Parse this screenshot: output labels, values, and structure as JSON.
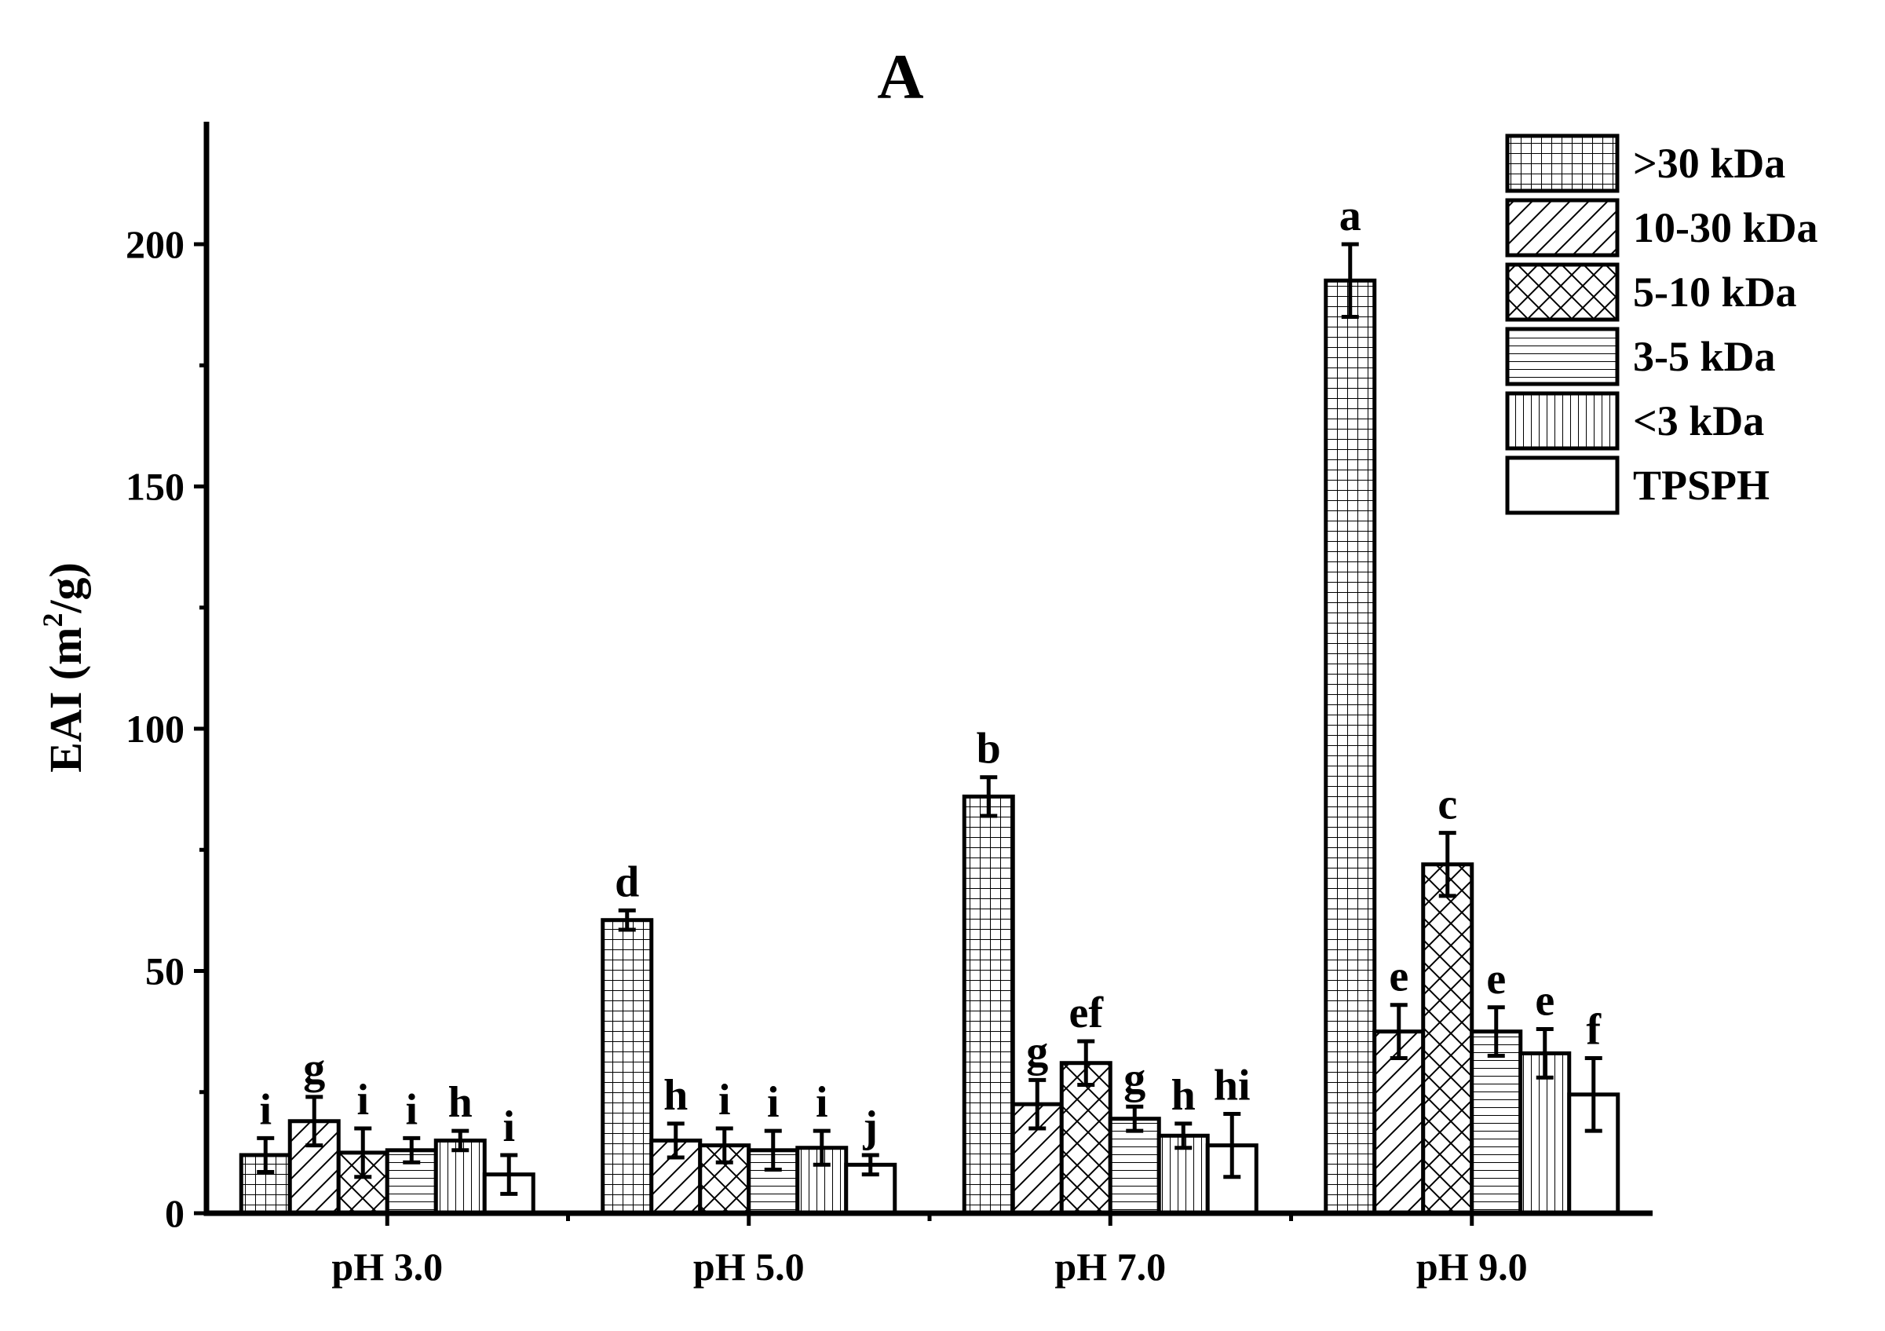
{
  "chart_data": {
    "type": "bar",
    "title": "A",
    "xlabel": "",
    "ylabel": "EAI (m",
    "ylabel_sup": "2",
    "ylabel_tail": "/g)",
    "ylim": [
      0,
      225
    ],
    "yticks": [
      0,
      50,
      100,
      150,
      200
    ],
    "categories": [
      "pH 3.0",
      "pH 5.0",
      "pH 7.0",
      "pH 9.0"
    ],
    "series": [
      {
        "name": ">30 kDa",
        "pattern": "grid",
        "values": [
          12,
          60.5,
          86,
          192.5
        ],
        "errors": [
          3.5,
          2,
          4,
          7.5
        ],
        "labels": [
          "i",
          "d",
          "b",
          "a"
        ]
      },
      {
        "name": "10-30 kDa",
        "pattern": "diagonal",
        "values": [
          19,
          15,
          22.5,
          37.5
        ],
        "errors": [
          5,
          3.5,
          5,
          5.5
        ],
        "labels": [
          "g",
          "h",
          "g",
          "e"
        ]
      },
      {
        "name": "5-10 kDa",
        "pattern": "crosshatch",
        "values": [
          12.5,
          14,
          31,
          72
        ],
        "errors": [
          5,
          3.5,
          4.5,
          6.5
        ],
        "labels": [
          "i",
          "i",
          "ef",
          "c"
        ]
      },
      {
        "name": "3-5 kDa",
        "pattern": "horizontal",
        "values": [
          13,
          13,
          19.5,
          37.5
        ],
        "errors": [
          2.5,
          4,
          2.5,
          5
        ],
        "labels": [
          "i",
          "i",
          "g",
          "e"
        ]
      },
      {
        "name": "<3 kDa",
        "pattern": "vertical",
        "values": [
          15,
          13.5,
          16,
          33
        ],
        "errors": [
          2,
          3.5,
          2.5,
          5
        ],
        "labels": [
          "h",
          "i",
          "h",
          "e"
        ]
      },
      {
        "name": "TPSPH",
        "pattern": "none",
        "values": [
          8,
          10,
          14,
          24.5
        ],
        "errors": [
          4,
          2,
          6.5,
          7.5
        ],
        "labels": [
          "i",
          "j",
          "hi",
          "f"
        ]
      }
    ],
    "legend_position": "top-right",
    "grid": false
  }
}
